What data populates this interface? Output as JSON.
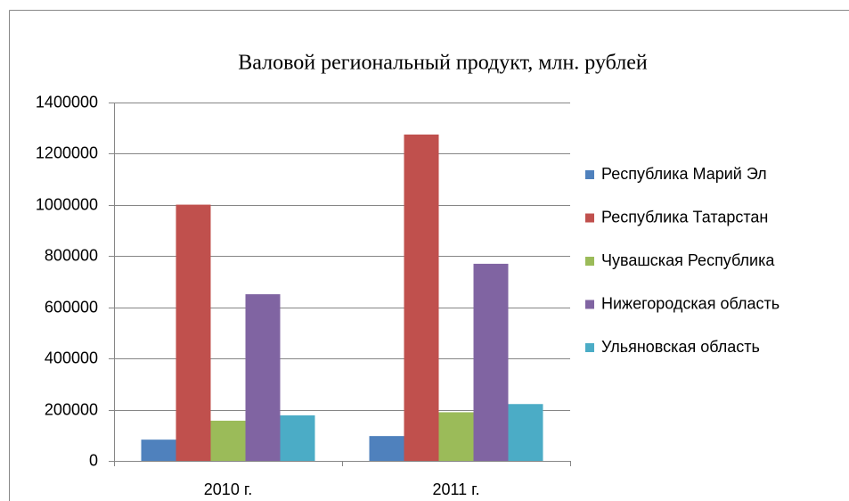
{
  "chart_data": {
    "type": "bar",
    "title": "Валовой региональный продукт, млн. рублей",
    "categories": [
      "2010 г.",
      "2011 г."
    ],
    "series": [
      {
        "name": "Республика  Марий Эл",
        "color": "#4f81bd",
        "values": [
          83000,
          97000
        ]
      },
      {
        "name": "Республика Татарстан",
        "color": "#c0504d",
        "values": [
          1001000,
          1275000
        ]
      },
      {
        "name": "Чувашская Республика",
        "color": "#9bbb59",
        "values": [
          157000,
          190000
        ]
      },
      {
        "name": "Нижегородская область",
        "color": "#8064a2",
        "values": [
          651000,
          770000
        ]
      },
      {
        "name": "Ульяновская область",
        "color": "#4bacc6",
        "values": [
          178000,
          222000
        ]
      }
    ],
    "ylim": [
      0,
      1400000
    ],
    "yticks": [
      0,
      200000,
      400000,
      600000,
      800000,
      1000000,
      1200000,
      1400000
    ],
    "grid": true,
    "legend": "right"
  }
}
